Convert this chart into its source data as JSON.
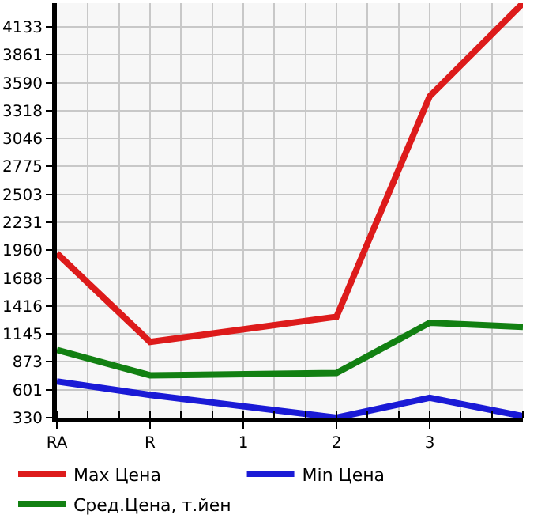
{
  "chart_data": {
    "type": "line",
    "categories": [
      "RA",
      "R",
      "1",
      "2",
      "3",
      null
    ],
    "series": [
      {
        "name": "Max Цена",
        "color": "#dd1b1b",
        "values": [
          1930,
          1067,
          null,
          1312,
          3458,
          4364
        ]
      },
      {
        "name": "Min Цена",
        "color": "#1a1ad6",
        "values": [
          683,
          551,
          null,
          330,
          524,
          344
        ]
      },
      {
        "name": "Сред.Цена, т.йен",
        "color": "#128012",
        "values": [
          989,
          742,
          null,
          765,
          1253,
          1213
        ]
      }
    ],
    "ylim": [
      330,
      4364
    ],
    "yticks": [
      330,
      601,
      873,
      1145,
      1416,
      1688,
      1960,
      2231,
      2503,
      2775,
      3046,
      3318,
      3590,
      3861,
      4133
    ],
    "grid": true,
    "legend": "bottom",
    "marker": "none",
    "line_style": "solid"
  }
}
